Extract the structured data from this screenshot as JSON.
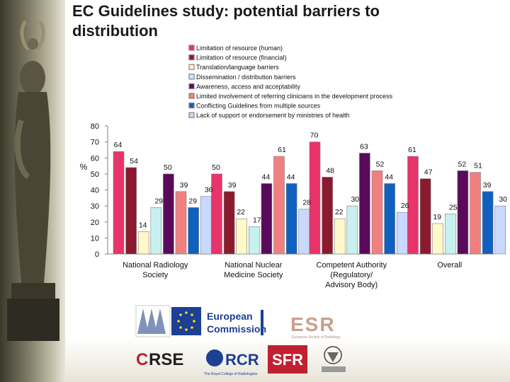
{
  "slide": {
    "title": "EC Guidelines study: potential barriers to distribution"
  },
  "logos": {
    "ec_line1": "European",
    "ec_line2": "Commission",
    "esr": "ESR",
    "esr_sub": "European Society of Radiology",
    "cirse_a": "C",
    "cirse_b": "RSE",
    "rcr": "RCR",
    "rcr_sub": "The Royal College of Radiologists",
    "sfr": "SFR"
  },
  "colors": {
    "series": [
      "#e8336b",
      "#8b1a2e",
      "#fff8c8",
      "#c8f0f0",
      "#5a0a5a",
      "#f08080",
      "#1060c0",
      "#c8d8ff"
    ],
    "bar_stroke": "#808080"
  },
  "chart_data": {
    "type": "bar",
    "ylabel": "%",
    "ylim": [
      0,
      80
    ],
    "yticks": [
      0,
      10,
      20,
      30,
      40,
      50,
      60,
      70,
      80
    ],
    "grid": false,
    "legend_position": "top-right",
    "categories": [
      "National Radiology Society",
      "National Nuclear Medicine Society",
      "Competent Authority (Regulatory/ Advisory Body)",
      "Overall"
    ],
    "series": [
      {
        "name": "Limitation of resource (human)",
        "values": [
          64,
          50,
          70,
          61
        ]
      },
      {
        "name": "Limitation of resource (financial)",
        "values": [
          54,
          39,
          48,
          47
        ]
      },
      {
        "name": "Translation/language barriers",
        "values": [
          14,
          22,
          22,
          19
        ]
      },
      {
        "name": "Dissemination / distribution barriers",
        "values": [
          29,
          17,
          30,
          25
        ]
      },
      {
        "name": "Awareness, access and acceptability",
        "values": [
          50,
          44,
          63,
          52
        ]
      },
      {
        "name": "Limited involvement of referring clinicians in the development process",
        "values": [
          39,
          61,
          52,
          51
        ]
      },
      {
        "name": "Conflicting Guidelines from multiple sources",
        "values": [
          29,
          44,
          44,
          39
        ]
      },
      {
        "name": "Lack of support or endorsement by ministries of health",
        "values": [
          36,
          28,
          26,
          30
        ]
      }
    ]
  }
}
